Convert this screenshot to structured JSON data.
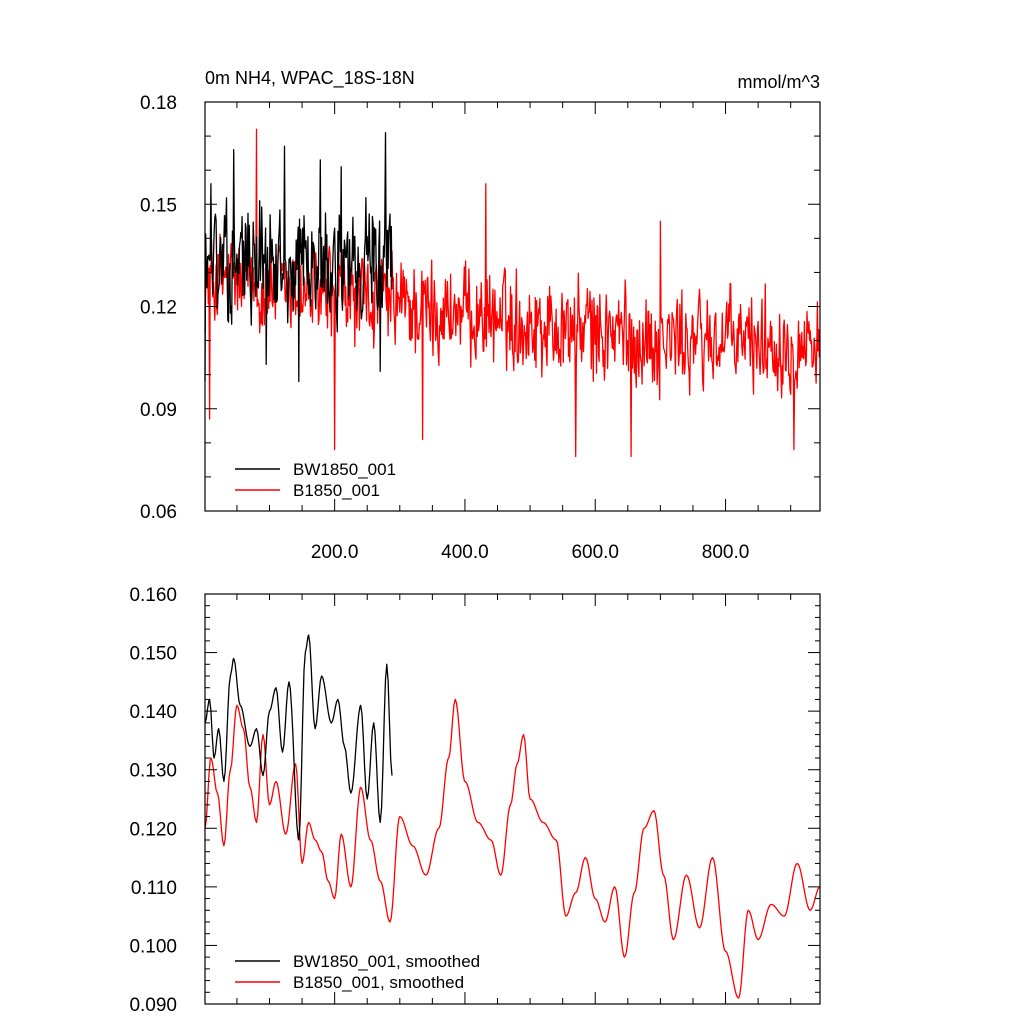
{
  "chart_data": [
    {
      "type": "line",
      "title": "0m NH4, WPAC_18S-18N",
      "units_label": "mmol/m^3",
      "xlim": [
        1,
        945
      ],
      "ylim": [
        0.06,
        0.18
      ],
      "y_ticks": [
        "0.06",
        "0.09",
        "0.12",
        "0.15",
        "0.18"
      ],
      "x_ticks": [
        "200.0",
        "400.0",
        "600.0",
        "800.0"
      ],
      "x_tick_values": [
        200,
        400,
        600,
        800
      ],
      "legend": "bottom-left",
      "series": [
        {
          "name": "BW1850_001",
          "color": "#000000",
          "x_range": [
            1,
            288
          ],
          "mean": 0.133,
          "amplitude": 0.017,
          "values_sample": [
            [
              1,
              0.098
            ],
            [
              10,
              0.156
            ],
            [
              30,
              0.14
            ],
            [
              45,
              0.166
            ],
            [
              85,
              0.151
            ],
            [
              95,
              0.103
            ],
            [
              123,
              0.167
            ],
            [
              145,
              0.098
            ],
            [
              178,
              0.163
            ],
            [
              200,
              0.143
            ],
            [
              210,
              0.161
            ],
            [
              270,
              0.101
            ],
            [
              278,
              0.171
            ],
            [
              288,
              0.125
            ]
          ]
        },
        {
          "name": "B1850_001",
          "color": "#ff0000",
          "x_range": [
            1,
            945
          ],
          "mean_start": 0.128,
          "mean_end": 0.11,
          "amplitude": 0.015,
          "values_sample": [
            [
              8,
              0.087
            ],
            [
              80,
              0.172
            ],
            [
              200,
              0.078
            ],
            [
              335,
              0.081
            ],
            [
              432,
              0.156
            ],
            [
              570,
              0.076
            ],
            [
              655,
              0.076
            ],
            [
              700,
              0.145
            ],
            [
              905,
              0.078
            ],
            [
              945,
              0.105
            ]
          ]
        }
      ]
    },
    {
      "type": "line",
      "xlim": [
        1,
        945
      ],
      "ylim": [
        0.09,
        0.16
      ],
      "y_ticks": [
        "0.090",
        "0.100",
        "0.110",
        "0.120",
        "0.130",
        "0.140",
        "0.150",
        "0.160"
      ],
      "legend": "bottom-left",
      "series": [
        {
          "name": "BW1850_001, smoothed",
          "color": "#000000",
          "x_range": [
            1,
            288
          ],
          "keypoints": [
            [
              1,
              0.138
            ],
            [
              8,
              0.142
            ],
            [
              15,
              0.132
            ],
            [
              22,
              0.137
            ],
            [
              30,
              0.128
            ],
            [
              40,
              0.146
            ],
            [
              45,
              0.149
            ],
            [
              55,
              0.141
            ],
            [
              70,
              0.134
            ],
            [
              80,
              0.137
            ],
            [
              90,
              0.129
            ],
            [
              100,
              0.14
            ],
            [
              110,
              0.144
            ],
            [
              120,
              0.133
            ],
            [
              130,
              0.145
            ],
            [
              145,
              0.118
            ],
            [
              155,
              0.15
            ],
            [
              160,
              0.153
            ],
            [
              170,
              0.137
            ],
            [
              180,
              0.146
            ],
            [
              195,
              0.138
            ],
            [
              205,
              0.142
            ],
            [
              215,
              0.134
            ],
            [
              225,
              0.126
            ],
            [
              240,
              0.141
            ],
            [
              250,
              0.125
            ],
            [
              260,
              0.138
            ],
            [
              270,
              0.121
            ],
            [
              280,
              0.148
            ],
            [
              288,
              0.129
            ]
          ]
        },
        {
          "name": "B1850_001, smoothed",
          "color": "#ff0000",
          "x_range": [
            1,
            945
          ],
          "keypoints": [
            [
              1,
              0.12
            ],
            [
              10,
              0.132
            ],
            [
              20,
              0.126
            ],
            [
              30,
              0.117
            ],
            [
              40,
              0.13
            ],
            [
              50,
              0.141
            ],
            [
              60,
              0.137
            ],
            [
              70,
              0.127
            ],
            [
              80,
              0.121
            ],
            [
              90,
              0.136
            ],
            [
              100,
              0.124
            ],
            [
              110,
              0.128
            ],
            [
              125,
              0.119
            ],
            [
              140,
              0.131
            ],
            [
              150,
              0.114
            ],
            [
              160,
              0.121
            ],
            [
              170,
              0.118
            ],
            [
              180,
              0.116
            ],
            [
              190,
              0.111
            ],
            [
              200,
              0.108
            ],
            [
              210,
              0.119
            ],
            [
              225,
              0.11
            ],
            [
              240,
              0.127
            ],
            [
              255,
              0.118
            ],
            [
              270,
              0.111
            ],
            [
              285,
              0.104
            ],
            [
              300,
              0.122
            ],
            [
              320,
              0.117
            ],
            [
              340,
              0.112
            ],
            [
              360,
              0.12
            ],
            [
              375,
              0.132
            ],
            [
              385,
              0.142
            ],
            [
              400,
              0.128
            ],
            [
              420,
              0.121
            ],
            [
              440,
              0.118
            ],
            [
              455,
              0.112
            ],
            [
              470,
              0.124
            ],
            [
              480,
              0.131
            ],
            [
              490,
              0.136
            ],
            [
              500,
              0.125
            ],
            [
              520,
              0.121
            ],
            [
              540,
              0.118
            ],
            [
              555,
              0.105
            ],
            [
              570,
              0.109
            ],
            [
              585,
              0.115
            ],
            [
              600,
              0.108
            ],
            [
              615,
              0.104
            ],
            [
              630,
              0.11
            ],
            [
              645,
              0.098
            ],
            [
              660,
              0.109
            ],
            [
              675,
              0.12
            ],
            [
              690,
              0.123
            ],
            [
              705,
              0.112
            ],
            [
              720,
              0.101
            ],
            [
              740,
              0.112
            ],
            [
              760,
              0.103
            ],
            [
              780,
              0.115
            ],
            [
              800,
              0.099
            ],
            [
              820,
              0.091
            ],
            [
              835,
              0.106
            ],
            [
              850,
              0.101
            ],
            [
              870,
              0.107
            ],
            [
              890,
              0.105
            ],
            [
              910,
              0.114
            ],
            [
              930,
              0.106
            ],
            [
              945,
              0.11
            ]
          ]
        }
      ]
    }
  ]
}
